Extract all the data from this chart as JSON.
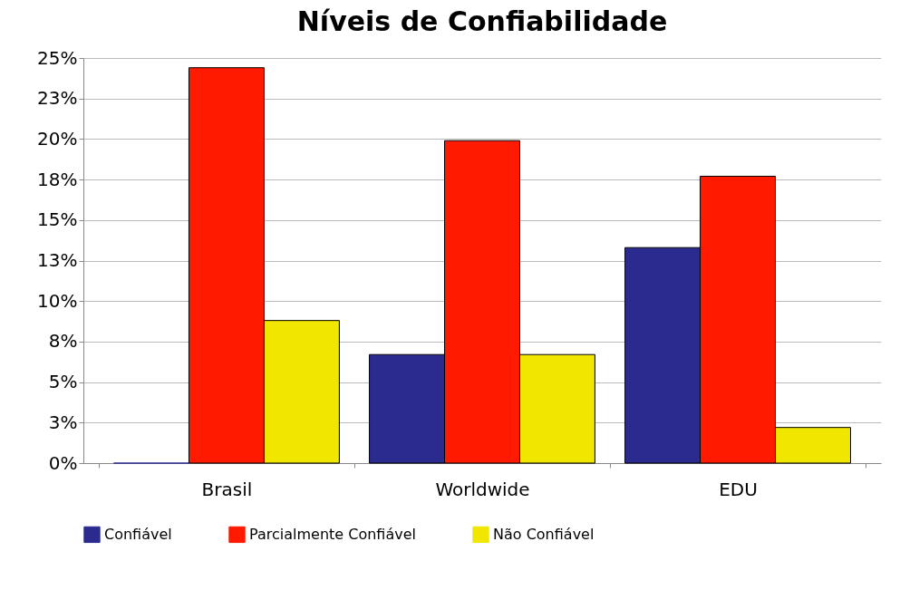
{
  "chart_data": {
    "type": "bar",
    "title": "Níveis de Confiabilidade",
    "categories": [
      "Brasil",
      "Worldwide",
      "EDU"
    ],
    "series": [
      {
        "name": "Confiável",
        "color": "#2b2b8f",
        "values": [
          0,
          6.7,
          13.3
        ]
      },
      {
        "name": "Parcialmente Confiável",
        "color": "#ff1a00",
        "values": [
          24.4,
          19.9,
          17.7
        ]
      },
      {
        "name": "Não Confiável",
        "color": "#f0e600",
        "values": [
          8.8,
          6.7,
          2.2
        ]
      }
    ],
    "ylim": [
      0,
      25
    ],
    "yticks": [
      {
        "value": 0,
        "label": "0%"
      },
      {
        "value": 2.5,
        "label": "3%"
      },
      {
        "value": 5,
        "label": "5%"
      },
      {
        "value": 7.5,
        "label": "8%"
      },
      {
        "value": 10,
        "label": "10%"
      },
      {
        "value": 12.5,
        "label": "13%"
      },
      {
        "value": 15,
        "label": "15%"
      },
      {
        "value": 17.5,
        "label": "18%"
      },
      {
        "value": 20,
        "label": "20%"
      },
      {
        "value": 22.5,
        "label": "23%"
      },
      {
        "value": 25,
        "label": "25%"
      }
    ],
    "grid": "y",
    "legend": "bottom"
  }
}
